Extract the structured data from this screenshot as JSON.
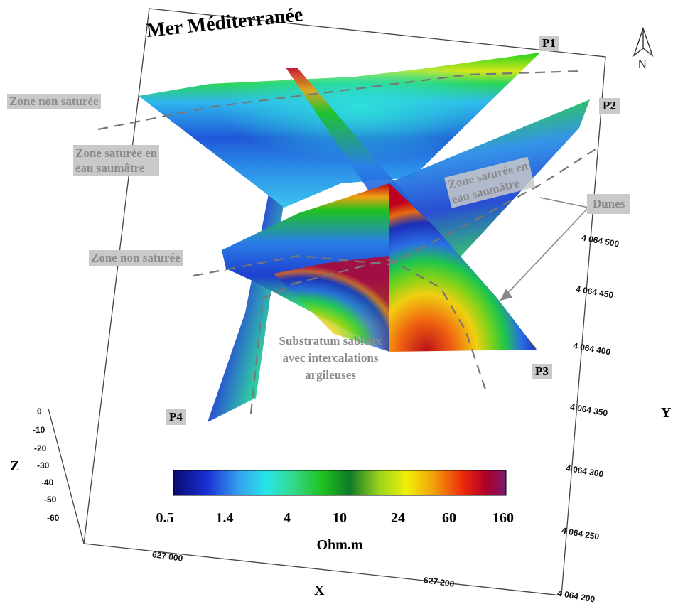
{
  "title": "Mer Méditerranée",
  "north": "N",
  "profiles": {
    "p1": "P1",
    "p2": "P2",
    "p3": "P3",
    "p4": "P4"
  },
  "zones": {
    "non_saturee_1": "Zone non saturée",
    "saturee_1_line1": "Zone saturée en",
    "saturee_1_line2": "eau saumâtre",
    "non_saturee_2": "Zone non saturée",
    "saturee_2_line1": "Zone saturée en",
    "saturee_2_line2": "eau saumâtre",
    "dunes": "Dunes",
    "substratum_line1": "Substratum sableux",
    "substratum_line2": "avec intercalations",
    "substratum_line3": "argileuses"
  },
  "axes": {
    "x_label": "X",
    "y_label": "Y",
    "z_label": "Z",
    "x_ticks": [
      "627 000",
      "627 200"
    ],
    "y_ticks": [
      "4 064 500",
      "4 064 450",
      "4 064 400",
      "4 064 350",
      "4 064 300",
      "4 064 250",
      "4 064 200"
    ],
    "z_ticks": [
      "0",
      "-10",
      "-20",
      "-30",
      "-40",
      "-50",
      "-60"
    ]
  },
  "colorbar": {
    "labels": [
      "0.5",
      "1.4",
      "4",
      "10",
      "24",
      "60",
      "160"
    ],
    "unit": "Ohm.m",
    "colors": [
      "#0a0a6e",
      "#1a2fd6",
      "#35a4f0",
      "#26e6e8",
      "#33d98a",
      "#1ec21e",
      "#0f7a2a",
      "#9bd41a",
      "#f0f00a",
      "#f2a30a",
      "#ee2a0a",
      "#b0002a",
      "#7a1a6e"
    ]
  }
}
